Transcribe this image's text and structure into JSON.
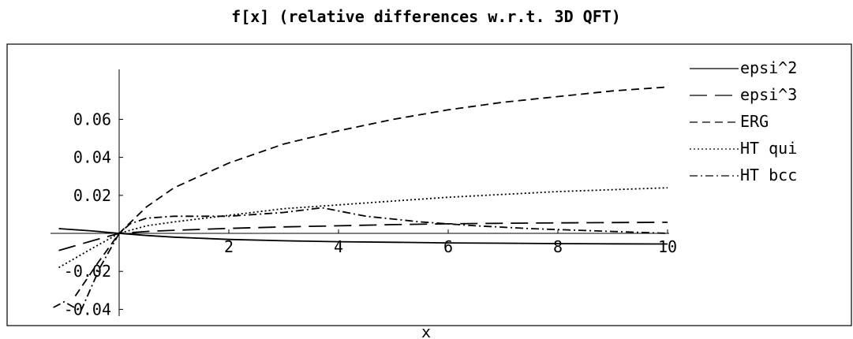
{
  "chart_data": {
    "type": "line",
    "title": "f[x] (relative differences w.r.t. 3D QFT)",
    "xlabel": "x",
    "ylabel": "",
    "xlim": [
      -1.4,
      10.0
    ],
    "ylim": [
      -0.045,
      0.08
    ],
    "xticks": [
      2,
      4,
      6,
      8,
      10
    ],
    "xtick_labels": [
      "2",
      "4",
      "6",
      "8",
      "10"
    ],
    "yticks": [
      0.06,
      0.04,
      0.02,
      -0.02,
      -0.04
    ],
    "ytick_labels": [
      "0.06",
      "0.04",
      "0.02",
      "-0.02",
      "-0.04"
    ],
    "grid": false,
    "legend_position": "top-right",
    "series": [
      {
        "name": "epsi^2",
        "dash": "none",
        "x": [
          -1.1,
          -0.5,
          0,
          0.5,
          1,
          2,
          3,
          4,
          5,
          6,
          7,
          8,
          9,
          10
        ],
        "y": [
          0.0025,
          0.0013,
          0,
          -0.0011,
          -0.002,
          -0.0032,
          -0.0039,
          -0.0044,
          -0.0047,
          -0.005,
          -0.0052,
          -0.0054,
          -0.0055,
          -0.0056
        ]
      },
      {
        "name": "epsi^3",
        "dash": "long",
        "x": [
          -1.1,
          -0.5,
          0,
          0.5,
          1,
          2,
          3,
          4,
          5,
          6,
          7,
          8,
          9,
          10
        ],
        "y": [
          -0.009,
          -0.004,
          0,
          0.001,
          0.0016,
          0.0026,
          0.0034,
          0.004,
          0.0046,
          0.005,
          0.0053,
          0.0055,
          0.0057,
          0.0058
        ]
      },
      {
        "name": "ERG",
        "dash": "medium",
        "x": [
          -0.8,
          -0.4,
          0,
          0.5,
          1,
          2,
          3,
          4,
          5,
          6,
          7,
          8,
          9,
          10
        ],
        "y": [
          -0.033,
          -0.016,
          0,
          0.014,
          0.024,
          0.037,
          0.047,
          0.054,
          0.06,
          0.065,
          0.069,
          0.072,
          0.075,
          0.077
        ]
      },
      {
        "name": "HT qui",
        "dash": "dotted",
        "x": [
          -1.1,
          -0.5,
          0,
          0.5,
          1,
          2,
          3,
          4,
          5,
          6,
          7,
          8,
          9,
          10
        ],
        "y": [
          -0.018,
          -0.008,
          0,
          0.004,
          0.006,
          0.0095,
          0.013,
          0.015,
          0.017,
          0.019,
          0.0205,
          0.022,
          0.023,
          0.024
        ]
      },
      {
        "name": "HT bcc",
        "dash": "dashdot",
        "x": [
          -1.2,
          -1.0,
          -0.7,
          -0.35,
          0,
          0.2,
          0.5,
          1,
          2,
          3,
          3.7,
          4.5,
          5.5,
          6.5,
          7.5,
          8.5,
          9.5,
          10
        ],
        "y": [
          -0.039,
          -0.036,
          -0.041,
          -0.018,
          0,
          0.005,
          0.008,
          0.009,
          0.009,
          0.011,
          0.0135,
          0.009,
          0.006,
          0.004,
          0.0025,
          0.0015,
          0.0005,
          0
        ]
      }
    ]
  }
}
